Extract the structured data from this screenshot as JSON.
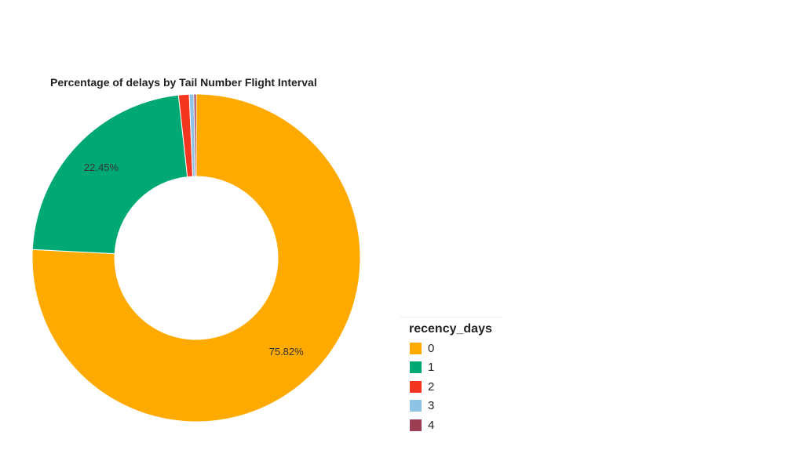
{
  "chart_data": {
    "type": "pie",
    "title": "Percentage of delays by Tail Number Flight Interval",
    "legend_title": "recency_days",
    "legend_position": "bottom-right",
    "slices": [
      {
        "label": "0",
        "value": 75.82,
        "color": "#FFAA00",
        "display_label": "75.82%"
      },
      {
        "label": "1",
        "value": 22.45,
        "color": "#00A874",
        "display_label": "22.45%"
      },
      {
        "label": "2",
        "value": 1.05,
        "color": "#F43620",
        "display_label": ""
      },
      {
        "label": "3",
        "value": 0.45,
        "color": "#8DC4E6",
        "display_label": ""
      },
      {
        "label": "4",
        "value": 0.23,
        "color": "#9C3D54",
        "display_label": ""
      }
    ]
  }
}
